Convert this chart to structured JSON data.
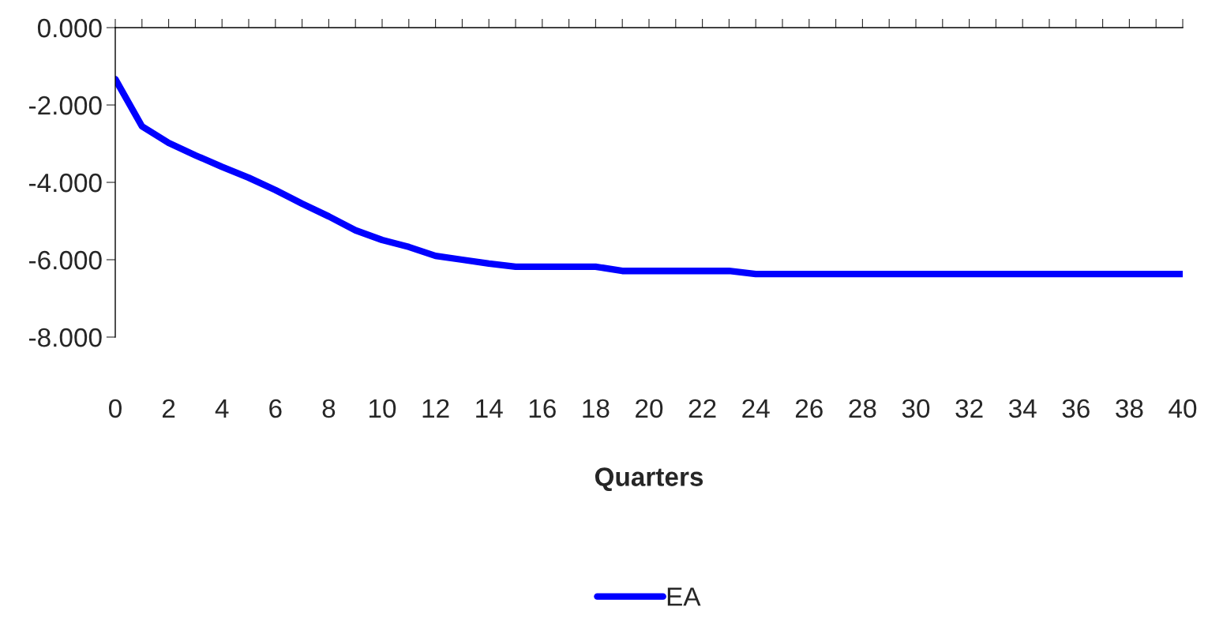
{
  "chart_data": {
    "type": "line",
    "xlabel": "Quarters",
    "x": [
      0,
      1,
      2,
      3,
      4,
      5,
      6,
      7,
      8,
      9,
      10,
      11,
      12,
      13,
      14,
      15,
      16,
      17,
      18,
      19,
      20,
      21,
      22,
      23,
      24,
      25,
      26,
      27,
      28,
      29,
      30,
      31,
      32,
      33,
      34,
      35,
      36,
      37,
      38,
      39,
      40
    ],
    "series": [
      {
        "name": "EA",
        "color": "#0000ff",
        "values": [
          -1.33,
          -2.55,
          -2.98,
          -3.3,
          -3.6,
          -3.88,
          -4.2,
          -4.55,
          -4.88,
          -5.24,
          -5.49,
          -5.67,
          -5.9,
          -6.0,
          -6.1,
          -6.18,
          -6.18,
          -6.18,
          -6.18,
          -6.29,
          -6.29,
          -6.29,
          -6.29,
          -6.29,
          -6.37,
          -6.37,
          -6.37,
          -6.37,
          -6.37,
          -6.37,
          -6.37,
          -6.37,
          -6.37,
          -6.37,
          -6.37,
          -6.37,
          -6.37,
          -6.37,
          -6.37,
          -6.37,
          -6.37
        ]
      }
    ],
    "xlim": [
      0,
      40
    ],
    "xticks": [
      0,
      {
        "value": 1,
        "label": null
      },
      2,
      {
        "value": 3,
        "label": null
      },
      4,
      {
        "value": 5,
        "label": null
      },
      6,
      {
        "value": 7,
        "label": null
      },
      8,
      {
        "value": 9,
        "label": null
      },
      10,
      {
        "value": 11,
        "label": null
      },
      12,
      {
        "value": 13,
        "label": null
      },
      14,
      {
        "value": 15,
        "label": null
      },
      16,
      {
        "value": 17,
        "label": null
      },
      18,
      {
        "value": 19,
        "label": null
      },
      20,
      {
        "value": 21,
        "label": null
      },
      22,
      {
        "value": 23,
        "label": null
      },
      24,
      {
        "value": 25,
        "label": null
      },
      26,
      {
        "value": 27,
        "label": null
      },
      28,
      {
        "value": 29,
        "label": null
      },
      30,
      {
        "value": 31,
        "label": null
      },
      32,
      {
        "value": 33,
        "label": null
      },
      34,
      {
        "value": 35,
        "label": null
      },
      36,
      {
        "value": 37,
        "label": null
      },
      38,
      {
        "value": 39,
        "label": null
      },
      40
    ],
    "ylim": [
      -8,
      0
    ],
    "yticks": [
      {
        "value": 0,
        "label": "0.000"
      },
      {
        "value": -2,
        "label": "-2.000"
      },
      {
        "value": -4,
        "label": "-4.000"
      },
      {
        "value": -6,
        "label": "-6.000"
      },
      {
        "value": -8,
        "label": "-8.000"
      }
    ],
    "grid": false,
    "legend": "bottom",
    "marker": "none",
    "line_style": "solid"
  }
}
